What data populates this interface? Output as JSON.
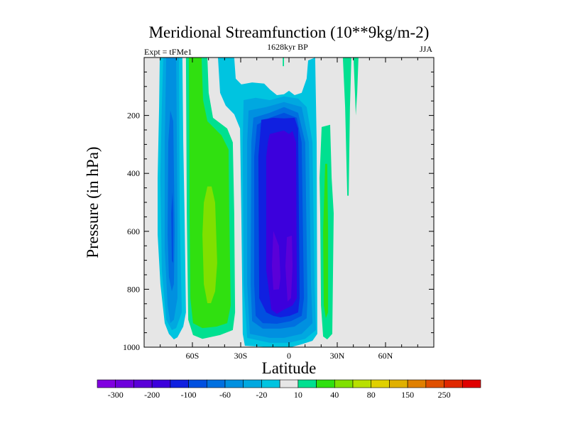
{
  "chart_data": {
    "type": "heatmap",
    "subtype": "filled-contour",
    "title": "Meridional Streamfunction (10**9kg/m-2)",
    "subtitle_left": "Expt = tFMe1",
    "subtitle_center": "1628kyr BP",
    "subtitle_right": "JJA",
    "xlabel": "Latitude",
    "ylabel": "Pressure (in hPa)",
    "xlim": [
      -90,
      90
    ],
    "ylim": [
      1000,
      0
    ],
    "x_ticks": [
      {
        "value": -60,
        "label": "60S"
      },
      {
        "value": -30,
        "label": "30S"
      },
      {
        "value": 0,
        "label": "0"
      },
      {
        "value": 30,
        "label": "30N"
      },
      {
        "value": 60,
        "label": "60N"
      }
    ],
    "y_ticks": [
      {
        "value": 200,
        "label": "200"
      },
      {
        "value": 400,
        "label": "400"
      },
      {
        "value": 600,
        "label": "600"
      },
      {
        "value": 800,
        "label": "800"
      },
      {
        "value": 1000,
        "label": "1000"
      }
    ],
    "background_color": "#e6e6e6",
    "contour_levels": [
      -300,
      -250,
      -200,
      -150,
      -100,
      -80,
      -60,
      -40,
      -20,
      -10,
      10,
      20,
      40,
      60,
      80,
      100,
      150,
      200,
      250,
      300
    ],
    "colors": [
      "#8000e0",
      "#6e00dc",
      "#5a00d8",
      "#3c00dc",
      "#1020e0",
      "#0050e0",
      "#0070e0",
      "#0090e0",
      "#00a8e0",
      "#00c4e0",
      "#e6e6e6",
      "#00e090",
      "#30e010",
      "#80e000",
      "#b8e000",
      "#e0d000",
      "#e0b000",
      "#e08000",
      "#e05000",
      "#e02800",
      "#e00000"
    ],
    "colorbar_labels": [
      {
        "level": -300,
        "label": "-300"
      },
      {
        "level": -200,
        "label": "-200"
      },
      {
        "level": -100,
        "label": "-100"
      },
      {
        "level": -60,
        "label": "-60"
      },
      {
        "level": -20,
        "label": "-20"
      },
      {
        "level": 10,
        "label": "10"
      },
      {
        "level": 40,
        "label": "40"
      },
      {
        "level": 80,
        "label": "80"
      },
      {
        "level": 150,
        "label": "150"
      },
      {
        "level": 250,
        "label": "250"
      }
    ],
    "regions": [
      {
        "name": "sh-polar-cell",
        "range": [
          -20,
          -10
        ],
        "points": [
          [
            -80.3,
            0
          ],
          [
            -66.2,
            0
          ],
          [
            -65.7,
            293
          ],
          [
            -64.9,
            538
          ],
          [
            -64,
            880
          ],
          [
            -65.7,
            929
          ],
          [
            -69.3,
            966
          ],
          [
            -71.5,
            973
          ],
          [
            -74.6,
            954
          ],
          [
            -77.2,
            917
          ],
          [
            -79.9,
            782
          ],
          [
            -81.6,
            611
          ],
          [
            -81.6,
            416
          ],
          [
            -80.7,
            171
          ]
        ]
      },
      {
        "name": "sh-polar-cell",
        "range": [
          -40,
          -20
        ],
        "points": [
          [
            -78.1,
            0
          ],
          [
            -68.4,
            0
          ],
          [
            -67.9,
            538
          ],
          [
            -66.6,
            880
          ],
          [
            -70.1,
            934
          ],
          [
            -72.8,
            941
          ],
          [
            -76.3,
            905
          ],
          [
            -79,
            734
          ],
          [
            -79.9,
            416
          ],
          [
            -79,
            171
          ]
        ]
      },
      {
        "name": "sh-polar-cell",
        "range": [
          -60,
          -40
        ],
        "points": [
          [
            -76.3,
            0
          ],
          [
            -70.1,
            0
          ],
          [
            -69.3,
            538
          ],
          [
            -69.3,
            831
          ],
          [
            -71.5,
            905
          ],
          [
            -73.7,
            917
          ],
          [
            -75.4,
            856
          ],
          [
            -77.2,
            660
          ],
          [
            -77.2,
            293
          ]
        ]
      },
      {
        "name": "sh-polar-cell",
        "range": [
          -80,
          -60
        ],
        "points": [
          [
            -73.7,
            183
          ],
          [
            -71.9,
            220
          ],
          [
            -71,
            599
          ],
          [
            -71.5,
            782
          ],
          [
            -72.8,
            807
          ],
          [
            -74.6,
            758
          ],
          [
            -75.4,
            611
          ],
          [
            -75,
            293
          ]
        ]
      },
      {
        "name": "sh-polar-cell",
        "range": [
          -100,
          -80
        ],
        "points": [
          [
            -72.4,
            465
          ],
          [
            -71.9,
            538
          ],
          [
            -71.9,
            709
          ],
          [
            -72.8,
            702
          ],
          [
            -73.2,
            538
          ]
        ]
      },
      {
        "name": "sh-ferrel-cell",
        "range": [
          10,
          20
        ],
        "points": [
          [
            -64,
            0
          ],
          [
            -50.7,
            0
          ],
          [
            -49.9,
            122
          ],
          [
            -47.2,
            208
          ],
          [
            -38.4,
            245
          ],
          [
            -34.9,
            293
          ],
          [
            -34,
            538
          ],
          [
            -33.5,
            880
          ],
          [
            -34.9,
            941
          ],
          [
            -42.8,
            958
          ],
          [
            -53.8,
            971
          ],
          [
            -59.6,
            958
          ],
          [
            -62.6,
            905
          ],
          [
            -63.5,
            538
          ]
        ]
      },
      {
        "name": "sh-ferrel-cell",
        "range": [
          20,
          40
        ],
        "points": [
          [
            -62.2,
            0
          ],
          [
            -54.3,
            0
          ],
          [
            -53.4,
            147
          ],
          [
            -50.7,
            220
          ],
          [
            -41.9,
            269
          ],
          [
            -37.5,
            318
          ],
          [
            -37.1,
            538
          ],
          [
            -36.2,
            856
          ],
          [
            -38.4,
            917
          ],
          [
            -45,
            929
          ],
          [
            -53.8,
            934
          ],
          [
            -59.6,
            917
          ],
          [
            -61.3,
            831
          ],
          [
            -61.8,
            538
          ]
        ]
      },
      {
        "name": "sh-ferrel-cell",
        "range": [
          40,
          60
        ],
        "points": [
          [
            -50.7,
            445
          ],
          [
            -48.1,
            445
          ],
          [
            -45.9,
            501
          ],
          [
            -44.6,
            709
          ],
          [
            -45.9,
            807
          ],
          [
            -48.5,
            848
          ],
          [
            -50.7,
            848
          ],
          [
            -52.9,
            782
          ],
          [
            -53.8,
            611
          ],
          [
            -52.9,
            501
          ]
        ]
      },
      {
        "name": "hadley-cell",
        "range": [
          -20,
          -10
        ],
        "points": [
          [
            -44.1,
            0
          ],
          [
            -34,
            0
          ],
          [
            -33.1,
            73
          ],
          [
            -29.6,
            93
          ],
          [
            -22.9,
            86
          ],
          [
            -15.4,
            90
          ],
          [
            -11.9,
            110
          ],
          [
            -7.5,
            130
          ],
          [
            -3.1,
            127
          ],
          [
            0,
            115
          ],
          [
            3.5,
            130
          ],
          [
            7.9,
            122
          ],
          [
            11,
            73
          ],
          [
            11.9,
            10
          ],
          [
            16.3,
            0
          ],
          [
            17.2,
            293
          ],
          [
            17.6,
            954
          ],
          [
            14.6,
            978
          ],
          [
            7.9,
            990
          ],
          [
            1.3,
            1000
          ],
          [
            -11.9,
            1000
          ],
          [
            -27.4,
            995
          ],
          [
            -28.7,
            954
          ],
          [
            -29.6,
            538
          ],
          [
            -30.4,
            245
          ],
          [
            -34,
            196
          ],
          [
            -39.3,
            166
          ],
          [
            -42.8,
            122
          ]
        ]
      },
      {
        "name": "hadley-cell",
        "range": [
          -40,
          -20
        ],
        "points": [
          [
            -28.2,
            147
          ],
          [
            -20.7,
            139
          ],
          [
            -11.9,
            147
          ],
          [
            -3.1,
            134
          ],
          [
            5.7,
            142
          ],
          [
            11,
            171
          ],
          [
            14.6,
            293
          ],
          [
            15.9,
            782
          ],
          [
            16.8,
            941
          ],
          [
            10.1,
            971
          ],
          [
            0,
            985
          ],
          [
            -11.9,
            985
          ],
          [
            -26,
            968
          ],
          [
            -28.2,
            782
          ],
          [
            -28.7,
            293
          ]
        ]
      },
      {
        "name": "hadley-cell",
        "range": [
          -60,
          -40
        ],
        "points": [
          [
            -25.1,
            183
          ],
          [
            -14.1,
            171
          ],
          [
            -3.1,
            154
          ],
          [
            7.9,
            171
          ],
          [
            12.4,
            293
          ],
          [
            13.7,
            782
          ],
          [
            14.6,
            917
          ],
          [
            7.9,
            954
          ],
          [
            -3.1,
            968
          ],
          [
            -11.9,
            968
          ],
          [
            -24.3,
            954
          ],
          [
            -26,
            782
          ],
          [
            -26,
            293
          ]
        ]
      },
      {
        "name": "hadley-cell",
        "range": [
          -80,
          -60
        ],
        "points": [
          [
            -22.1,
            208
          ],
          [
            -11.9,
            191
          ],
          [
            -3.1,
            171
          ],
          [
            5.7,
            191
          ],
          [
            10.1,
            293
          ],
          [
            11.5,
            831
          ],
          [
            11,
            900
          ],
          [
            3.5,
            929
          ],
          [
            -5.3,
            936
          ],
          [
            -16.3,
            936
          ],
          [
            -22.9,
            910
          ],
          [
            -23.8,
            782
          ],
          [
            -23.4,
            293
          ]
        ]
      },
      {
        "name": "hadley-cell",
        "range": [
          -100,
          -80
        ],
        "points": [
          [
            -19.9,
            232
          ],
          [
            -11.9,
            208
          ],
          [
            -3.1,
            191
          ],
          [
            4.9,
            208
          ],
          [
            7.9,
            293
          ],
          [
            9.3,
            831
          ],
          [
            7.9,
            892
          ],
          [
            1.3,
            910
          ],
          [
            -7.5,
            919
          ],
          [
            -16.3,
            917
          ],
          [
            -20.7,
            892
          ],
          [
            -21.6,
            782
          ],
          [
            -21.6,
            342
          ]
        ]
      },
      {
        "name": "hadley-cell",
        "range": [
          -150,
          -100
        ],
        "points": [
          [
            -17.2,
            215
          ],
          [
            -9.7,
            208
          ],
          [
            -3.1,
            210
          ],
          [
            3.5,
            208
          ],
          [
            5.7,
            245
          ],
          [
            6.6,
            831
          ],
          [
            5.7,
            880
          ],
          [
            0.4,
            892
          ],
          [
            -5.3,
            897
          ],
          [
            -9.7,
            892
          ],
          [
            -14.1,
            880
          ],
          [
            -18.5,
            831
          ],
          [
            -19,
            342
          ]
        ]
      },
      {
        "name": "hadley-cell",
        "range": [
          -200,
          -150
        ],
        "points": [
          [
            -11.9,
            264
          ],
          [
            -3.1,
            252
          ],
          [
            0,
            264
          ],
          [
            2.2,
            254
          ],
          [
            4.4,
            293
          ],
          [
            4.9,
            831
          ],
          [
            2.2,
            856
          ],
          [
            -3.1,
            870
          ],
          [
            -7.5,
            885
          ],
          [
            -11,
            870
          ],
          [
            -14.1,
            734
          ],
          [
            -14.1,
            342
          ],
          [
            -13,
            290
          ]
        ]
      },
      {
        "name": "hadley-cell",
        "range": [
          -250,
          -200
        ],
        "points": [
          [
            -9.7,
            599
          ],
          [
            -6.2,
            650
          ],
          [
            -5.3,
            760
          ],
          [
            -6.2,
            800
          ],
          [
            -9.7,
            802
          ],
          [
            -10.6,
            720
          ]
        ]
      },
      {
        "name": "hadley-cell",
        "range": [
          -250,
          -200
        ],
        "points": [
          [
            -1.3,
            620
          ],
          [
            1.8,
            615
          ],
          [
            2.2,
            720
          ],
          [
            1.3,
            830
          ],
          [
            -0.9,
            843
          ],
          [
            -2.2,
            720
          ]
        ]
      },
      {
        "name": "nh-cell",
        "range": [
          10,
          20
        ],
        "points": [
          [
            20.3,
            240
          ],
          [
            25.6,
            232
          ],
          [
            26.5,
            416
          ],
          [
            27.8,
            538
          ],
          [
            26.9,
            954
          ],
          [
            23.8,
            973
          ],
          [
            21.2,
            963
          ],
          [
            19.9,
            856
          ],
          [
            19.4,
            538
          ],
          [
            19,
            416
          ]
        ]
      },
      {
        "name": "nh-cell",
        "range": [
          20,
          40
        ],
        "points": [
          [
            22.5,
            367
          ],
          [
            23.8,
            367
          ],
          [
            24.3,
            599
          ],
          [
            24.3,
            880
          ],
          [
            22.9,
            900
          ],
          [
            21.6,
            856
          ],
          [
            21.2,
            599
          ]
        ]
      },
      {
        "name": "nh-streamer",
        "range": [
          10,
          20
        ],
        "points": [
          [
            33.5,
            0
          ],
          [
            38.8,
            0
          ],
          [
            37.9,
            171
          ],
          [
            37.1,
            477
          ],
          [
            36.2,
            477
          ],
          [
            34.9,
            171
          ]
        ]
      },
      {
        "name": "nh-streamer",
        "range": [
          10,
          20
        ],
        "points": [
          [
            40.1,
            0
          ],
          [
            43.2,
            0
          ],
          [
            42.4,
            122
          ],
          [
            41.5,
            200
          ],
          [
            41,
            122
          ]
        ]
      },
      {
        "name": "equatorial-streamer",
        "range": [
          10,
          20
        ],
        "points": [
          [
            -3.9,
            0
          ],
          [
            -3.1,
            0
          ],
          [
            -3.1,
            30
          ],
          [
            -3.9,
            30
          ]
        ]
      }
    ]
  }
}
